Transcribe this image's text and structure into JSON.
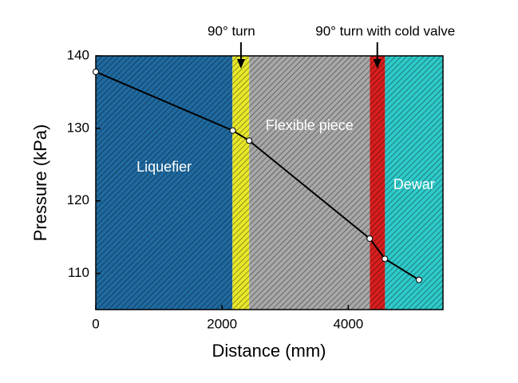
{
  "chart_data": {
    "type": "line",
    "xlabel": "Distance (mm)",
    "ylabel": "Pressure (kPa)",
    "x": [
      0,
      2170,
      2430,
      4340,
      4580,
      5120
    ],
    "series": [
      {
        "color": "#000000",
        "values": [
          137.8,
          129.7,
          128.3,
          114.8,
          112.0,
          109.1
        ]
      }
    ],
    "xlim": [
      0,
      5500
    ],
    "ylim": [
      105,
      140
    ],
    "xticks": [
      0,
      2000,
      4000
    ],
    "yticks": [
      110,
      120,
      130,
      140
    ],
    "regions": [
      {
        "label": "Liquefier",
        "start": 0,
        "end": 2165,
        "color": "#1f6aa0"
      },
      {
        "start": 2165,
        "end": 2430,
        "color": "#e8e82a"
      },
      {
        "label": "Flexible piece",
        "start": 2430,
        "end": 4342,
        "color": "#a8a8a8"
      },
      {
        "start": 4342,
        "end": 4582,
        "color": "#d81e1e"
      },
      {
        "label": "Dewar",
        "start": 4582,
        "end": 5500,
        "color": "#2fcaca"
      }
    ],
    "annotations": [
      {
        "text": "90° turn",
        "x": 2300
      },
      {
        "text": "90° turn with cold valve",
        "x": 4460
      }
    ]
  }
}
